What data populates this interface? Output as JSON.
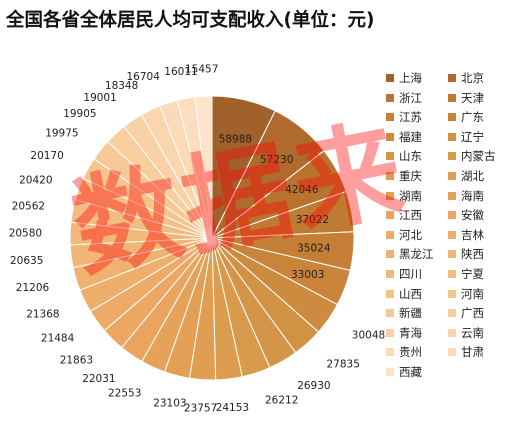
{
  "chart_data": {
    "type": "pie",
    "title": "全国各省全体居民人均可支配收入(单位：元)",
    "categories": [
      "上海",
      "北京",
      "浙江",
      "天津",
      "江苏",
      "广东",
      "福建",
      "辽宁",
      "山东",
      "内蒙古",
      "重庆",
      "湖北",
      "湖南",
      "海南",
      "江西",
      "安徽",
      "河北",
      "吉林",
      "黑龙江",
      "陕西",
      "四川",
      "宁夏",
      "山西",
      "河南",
      "新疆",
      "广西",
      "青海",
      "云南",
      "贵州",
      "甘肃",
      "西藏"
    ],
    "values": [
      58988,
      57230,
      42046,
      37022,
      35024,
      33003,
      30048,
      27835,
      26930,
      26212,
      24153,
      23757,
      23103,
      22553,
      22031,
      21863,
      21484,
      21368,
      21206,
      20635,
      20580,
      20562,
      20420,
      20170,
      19975,
      19905,
      19001,
      18348,
      16704,
      16011,
      15457
    ],
    "colors": [
      "#A0612A",
      "#B06A2E",
      "#B8742F",
      "#BF7A33",
      "#C47E36",
      "#C9843A",
      "#CD8B40",
      "#D19246",
      "#D4954A",
      "#DA9A4C",
      "#DD9D4F",
      "#E09E52",
      "#E3A055",
      "#E7A25A",
      "#EBA45E",
      "#ECA763",
      "#EDAA68",
      "#EEAE6C",
      "#F0B270",
      "#F1B575",
      "#F2B879",
      "#F3BC80",
      "#F4C087",
      "#F5C58E",
      "#F6C996",
      "#F7CE9E",
      "#F8D2A6",
      "#F9D6AE",
      "#FADAB7",
      "#FBDEBF",
      "#FCE3C9"
    ],
    "legend_position": "right"
  },
  "watermark_text": "数据来"
}
